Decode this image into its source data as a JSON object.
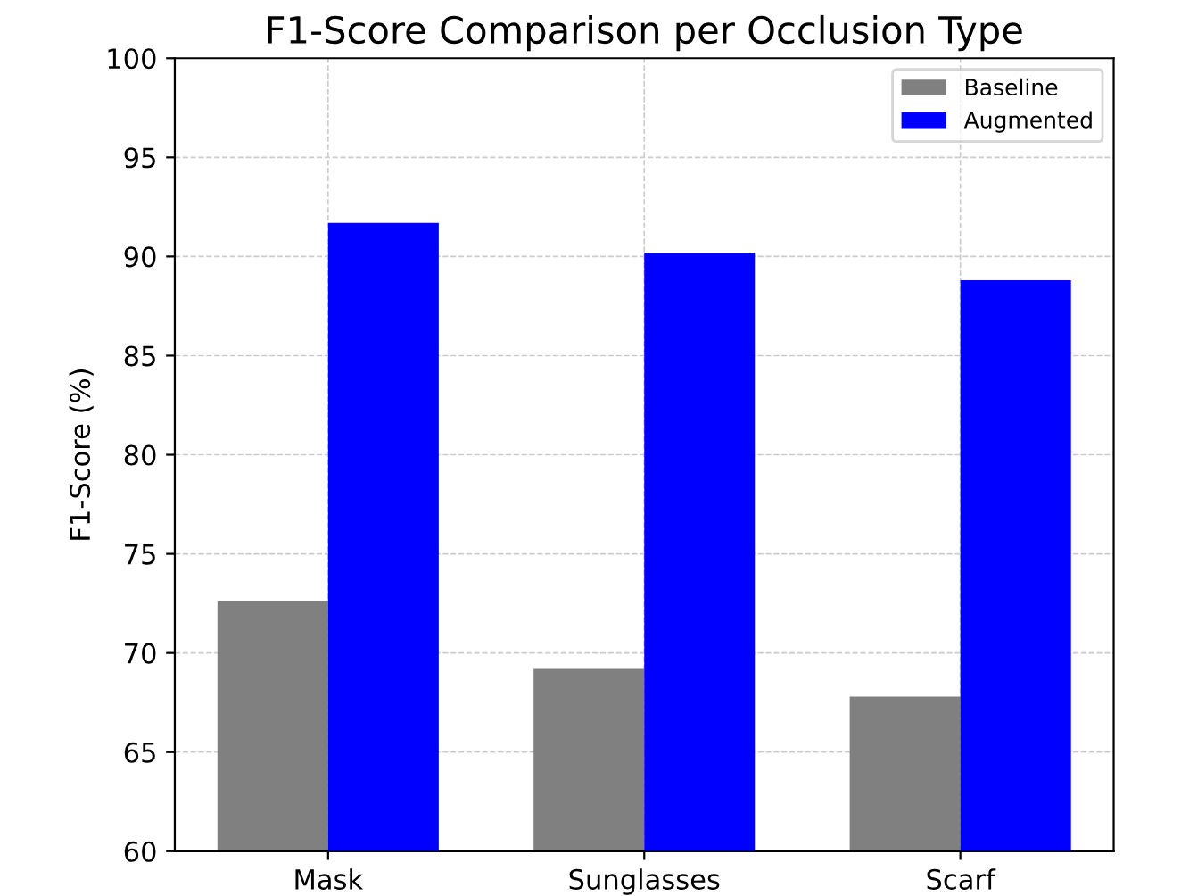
{
  "chart_data": {
    "type": "bar",
    "title": "F1-Score Comparison per Occlusion Type",
    "ylabel": "F1-Score (%)",
    "categories": [
      "Mask",
      "Sunglasses",
      "Scarf"
    ],
    "series": [
      {
        "name": "Baseline",
        "color": "#808080",
        "values": [
          72.6,
          69.2,
          67.8
        ]
      },
      {
        "name": "Augmented",
        "color": "#0000ff",
        "values": [
          91.7,
          90.2,
          88.8
        ]
      }
    ],
    "ylim": [
      60,
      100
    ],
    "yticks": [
      60,
      65,
      70,
      75,
      80,
      85,
      90,
      95,
      100
    ],
    "grid": true,
    "legend": "top right"
  }
}
